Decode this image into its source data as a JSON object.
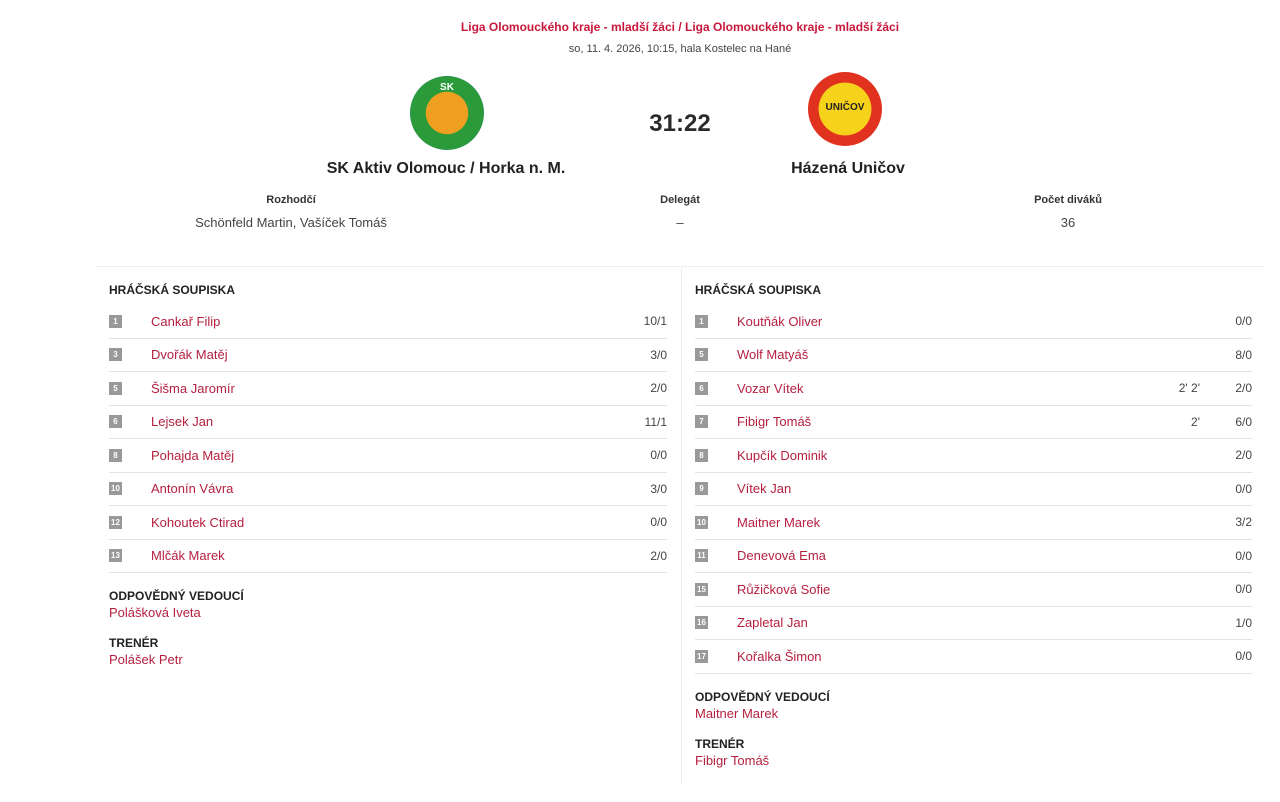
{
  "header": {
    "league": "Liga Olomouckého kraje - mladší žáci / Liga Olomouckého kraje - mladší žáci",
    "date": "so, 11. 4. 2026, 10:15, hala Kostelec na Hané",
    "score": "31:22"
  },
  "home": {
    "name": "SK Aktiv Olomouc / Horka n. M.",
    "logo_text": "SK",
    "logo_color": "#2a9a3a"
  },
  "away": {
    "name": "Házená Uničov",
    "logo_text": "UNIČOV",
    "logo_color": "#e0321e"
  },
  "info": {
    "referees_label": "Rozhodčí",
    "referees": "Schönfeld Martin, Vašíček Tomáš",
    "delegate_label": "Delegát",
    "delegate": "–",
    "spectators_label": "Počet diváků",
    "spectators": "36"
  },
  "labels": {
    "roster": "HRÁČSKÁ SOUPISKA",
    "manager": "ODPOVĚDNÝ VEDOUCÍ",
    "coach": "TRENÉR"
  },
  "home_roster": {
    "players": [
      {
        "num": "1",
        "name": "Cankař Filip",
        "pen": "",
        "goals": "10/1"
      },
      {
        "num": "3",
        "name": "Dvořák Matěj",
        "pen": "",
        "goals": "3/0"
      },
      {
        "num": "5",
        "name": "Šišma Jaromír",
        "pen": "",
        "goals": "2/0"
      },
      {
        "num": "6",
        "name": "Lejsek Jan",
        "pen": "",
        "goals": "11/1"
      },
      {
        "num": "8",
        "name": "Pohajda Matěj",
        "pen": "",
        "goals": "0/0"
      },
      {
        "num": "10",
        "name": "Antonín Vávra",
        "pen": "",
        "goals": "3/0"
      },
      {
        "num": "12",
        "name": "Kohoutek Ctirad",
        "pen": "",
        "goals": "0/0"
      },
      {
        "num": "13",
        "name": "Mlčák Marek",
        "pen": "",
        "goals": "2/0"
      }
    ],
    "manager": "Polášková Iveta",
    "coach": "Polášek Petr"
  },
  "away_roster": {
    "players": [
      {
        "num": "1",
        "name": "Koutňák Oliver",
        "pen": "",
        "goals": "0/0"
      },
      {
        "num": "5",
        "name": "Wolf Matyáš",
        "pen": "",
        "goals": "8/0"
      },
      {
        "num": "6",
        "name": "Vozar Vítek",
        "pen": "2' 2'",
        "goals": "2/0"
      },
      {
        "num": "7",
        "name": "Fibigr Tomáš",
        "pen": "2'",
        "goals": "6/0"
      },
      {
        "num": "8",
        "name": "Kupčík Dominik",
        "pen": "",
        "goals": "2/0"
      },
      {
        "num": "9",
        "name": "Vítek Jan",
        "pen": "",
        "goals": "0/0"
      },
      {
        "num": "10",
        "name": "Maitner Marek",
        "pen": "",
        "goals": "3/2"
      },
      {
        "num": "11",
        "name": "Denevová Ema",
        "pen": "",
        "goals": "0/0"
      },
      {
        "num": "15",
        "name": "Růžičková Sofie",
        "pen": "",
        "goals": "0/0"
      },
      {
        "num": "16",
        "name": "Zapletal Jan",
        "pen": "",
        "goals": "1/0"
      },
      {
        "num": "17",
        "name": "Kořalka Šimon",
        "pen": "",
        "goals": "0/0"
      }
    ],
    "manager": "Maitner Marek",
    "coach": "Fibigr Tomáš"
  }
}
